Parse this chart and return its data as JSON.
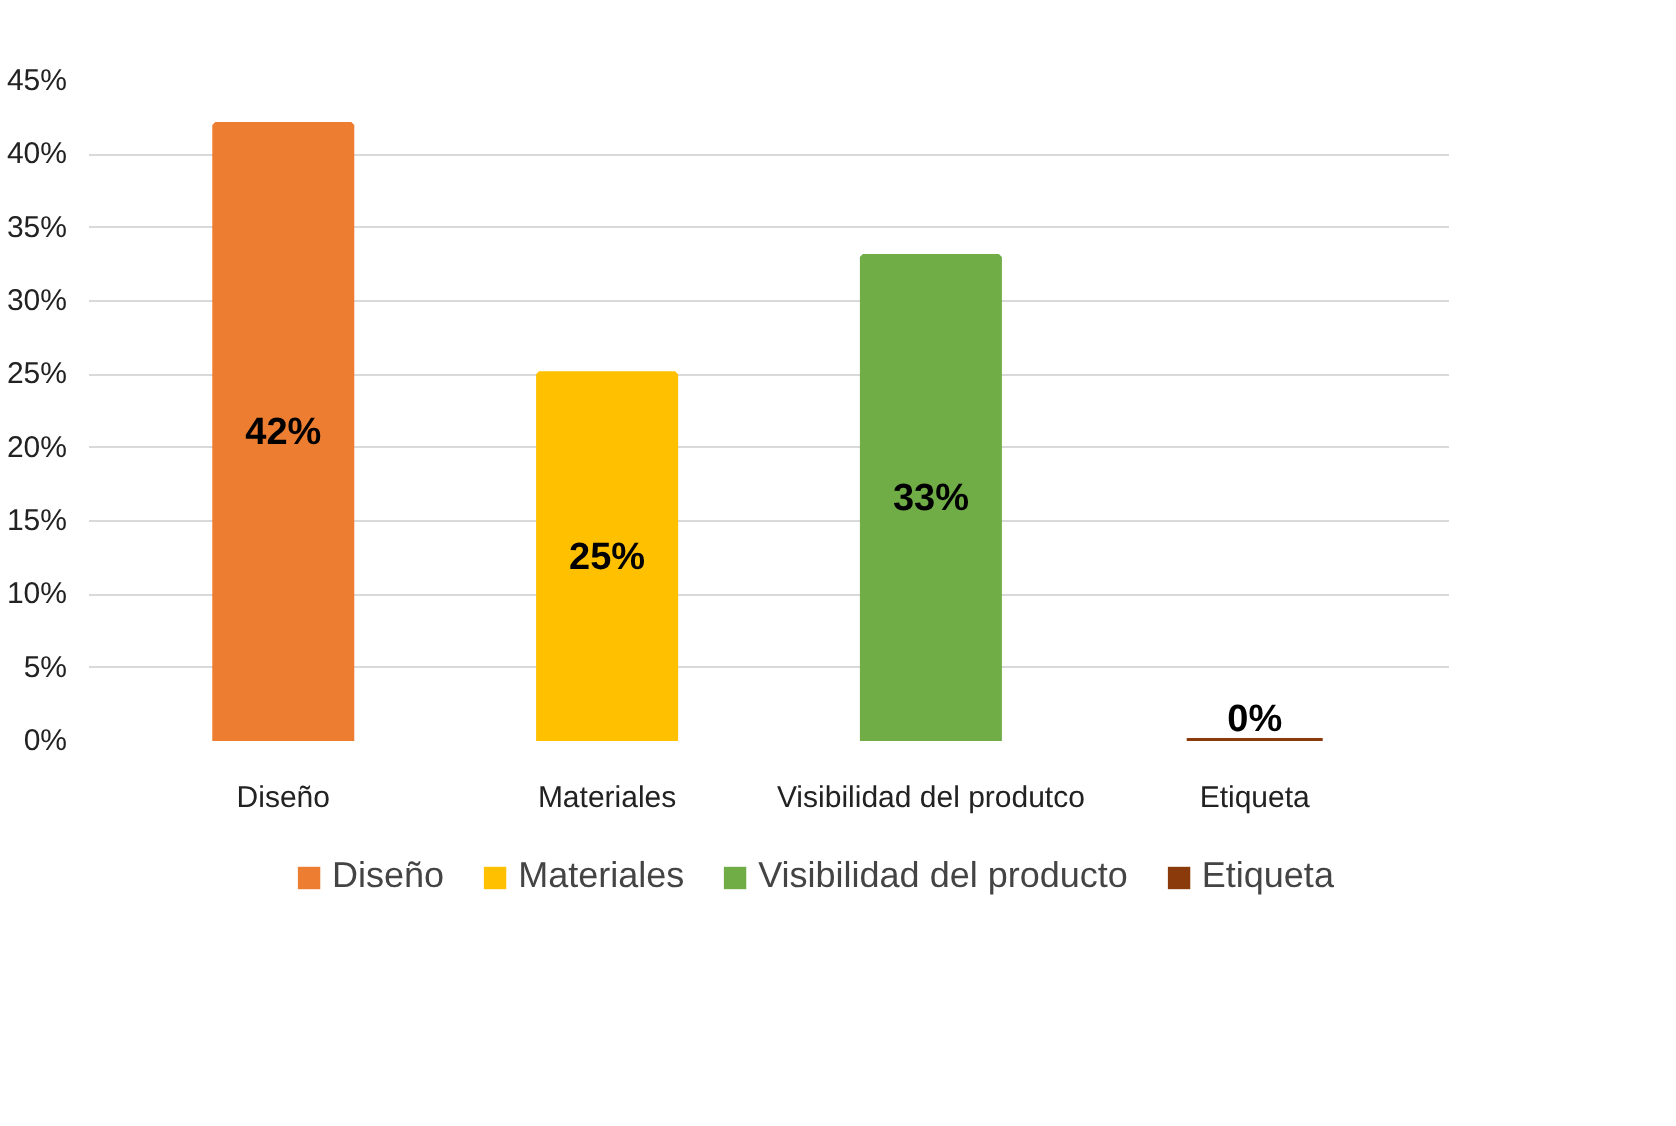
{
  "chart_data": {
    "type": "bar",
    "categories": [
      "Diseño",
      "Materiales",
      "Visibilidad del produtco",
      "Etiqueta"
    ],
    "series": [
      {
        "name": "Diseño",
        "color": "#ed7d31",
        "values": [
          42,
          null,
          null,
          null
        ],
        "value_labels": [
          "42%",
          null,
          null,
          null
        ]
      },
      {
        "name": "Materiales",
        "color": "#ffc000",
        "values": [
          null,
          25,
          null,
          null
        ],
        "value_labels": [
          null,
          "25%",
          null,
          null
        ]
      },
      {
        "name": "Visibilidad del producto",
        "color": "#70ad47",
        "values": [
          null,
          null,
          33,
          null
        ],
        "value_labels": [
          null,
          null,
          "33%",
          null
        ]
      },
      {
        "name": "Etiqueta",
        "color": "#8b3a0c",
        "values": [
          null,
          null,
          null,
          0
        ],
        "value_labels": [
          null,
          null,
          null,
          "0%"
        ]
      }
    ],
    "ylim": [
      0,
      45
    ],
    "yticks": [
      {
        "value": 0,
        "label": "0%"
      },
      {
        "value": 5,
        "label": "5%"
      },
      {
        "value": 10,
        "label": "10%"
      },
      {
        "value": 15,
        "label": "15%"
      },
      {
        "value": 20,
        "label": "20%"
      },
      {
        "value": 25,
        "label": "25%"
      },
      {
        "value": 30,
        "label": "30%"
      },
      {
        "value": 35,
        "label": "35%"
      },
      {
        "value": 40,
        "label": "40%"
      },
      {
        "value": 45,
        "label": "45%"
      }
    ],
    "grid": "y",
    "legend": "bottom"
  }
}
